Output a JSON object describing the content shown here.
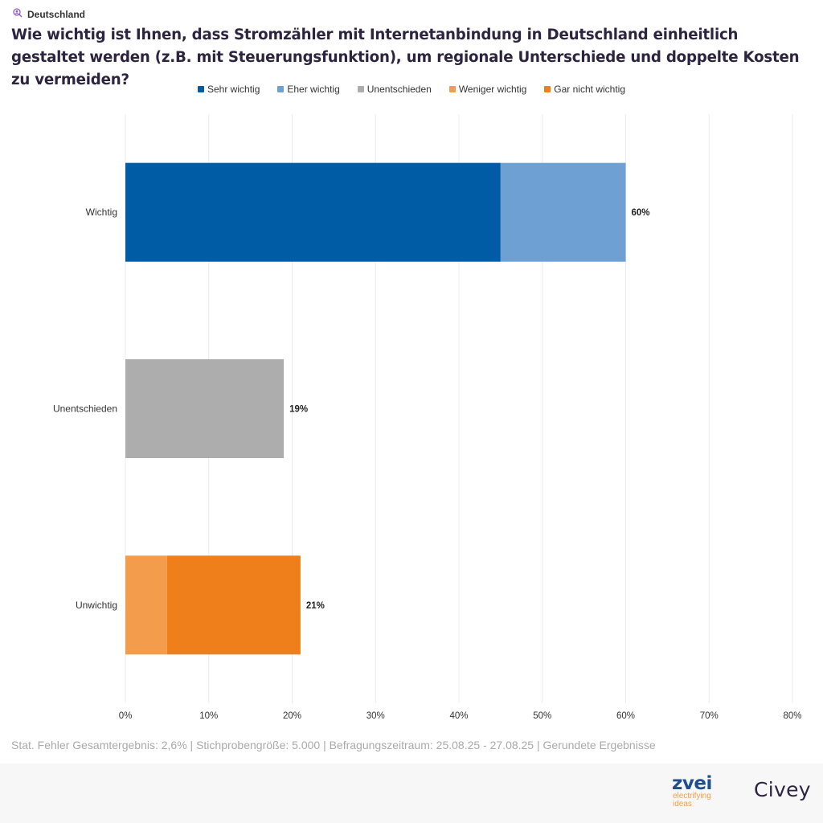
{
  "header": {
    "region_icon": "person-search-icon",
    "region": "Deutschland",
    "title": "Wie wichtig ist Ihnen, dass Stromzähler mit Internetanbindung in Deutschland einheitlich gestaltet werden (z.B. mit Steuerungsfunktion), um regionale Unterschiede und doppelte Kosten zu vermeiden?"
  },
  "legend": [
    {
      "label": "Sehr wichtig",
      "color": "#005da5"
    },
    {
      "label": "Eher wichtig",
      "color": "#6ea0d4"
    },
    {
      "label": "Unentschieden",
      "color": "#adadad"
    },
    {
      "label": "Weniger wichtig",
      "color": "#f39c4b"
    },
    {
      "label": "Gar nicht wichtig",
      "color": "#ee7f1b"
    }
  ],
  "chart_data": {
    "type": "bar",
    "orientation": "horizontal",
    "stacked": true,
    "title": "Wie wichtig ist Ihnen, dass Stromzähler mit Internetanbindung in Deutschland einheitlich gestaltet werden (z.B. mit Steuerungsfunktion), um regionale Unterschiede und doppelte Kosten zu vermeiden?",
    "categories": [
      "Wichtig",
      "Unentschieden",
      "Unwichtig"
    ],
    "series": [
      {
        "name": "Sehr wichtig",
        "color": "#005da5",
        "values": [
          45,
          0,
          0
        ]
      },
      {
        "name": "Eher wichtig",
        "color": "#6ea0d4",
        "values": [
          15,
          0,
          0
        ]
      },
      {
        "name": "Unentschieden",
        "color": "#adadad",
        "values": [
          0,
          19,
          0
        ]
      },
      {
        "name": "Weniger wichtig",
        "color": "#f39c4b",
        "values": [
          0,
          0,
          5
        ]
      },
      {
        "name": "Gar nicht wichtig",
        "color": "#ee7f1b",
        "values": [
          0,
          0,
          16
        ]
      }
    ],
    "totals": [
      "60%",
      "19%",
      "21%"
    ],
    "xlabel": "",
    "ylabel": "",
    "xlim": [
      0,
      80
    ],
    "xticks": [
      0,
      10,
      20,
      30,
      40,
      50,
      60,
      70,
      80
    ],
    "xtick_labels": [
      "0%",
      "10%",
      "20%",
      "30%",
      "40%",
      "50%",
      "60%",
      "70%",
      "80%"
    ],
    "grid": true,
    "legend_position": "top-center"
  },
  "footer": {
    "note": "Stat. Fehler Gesamtergebnis: 2,6% | Stichprobengröße: 5.000 | Befragungszeitraum: 25.08.25 - 27.08.25 | Gerundete Ergebnisse"
  },
  "logos": {
    "zvei_word": "zvei",
    "zvei_tagline_1": "electrifying",
    "zvei_tagline_2": "ideas",
    "civey": "Civey"
  }
}
